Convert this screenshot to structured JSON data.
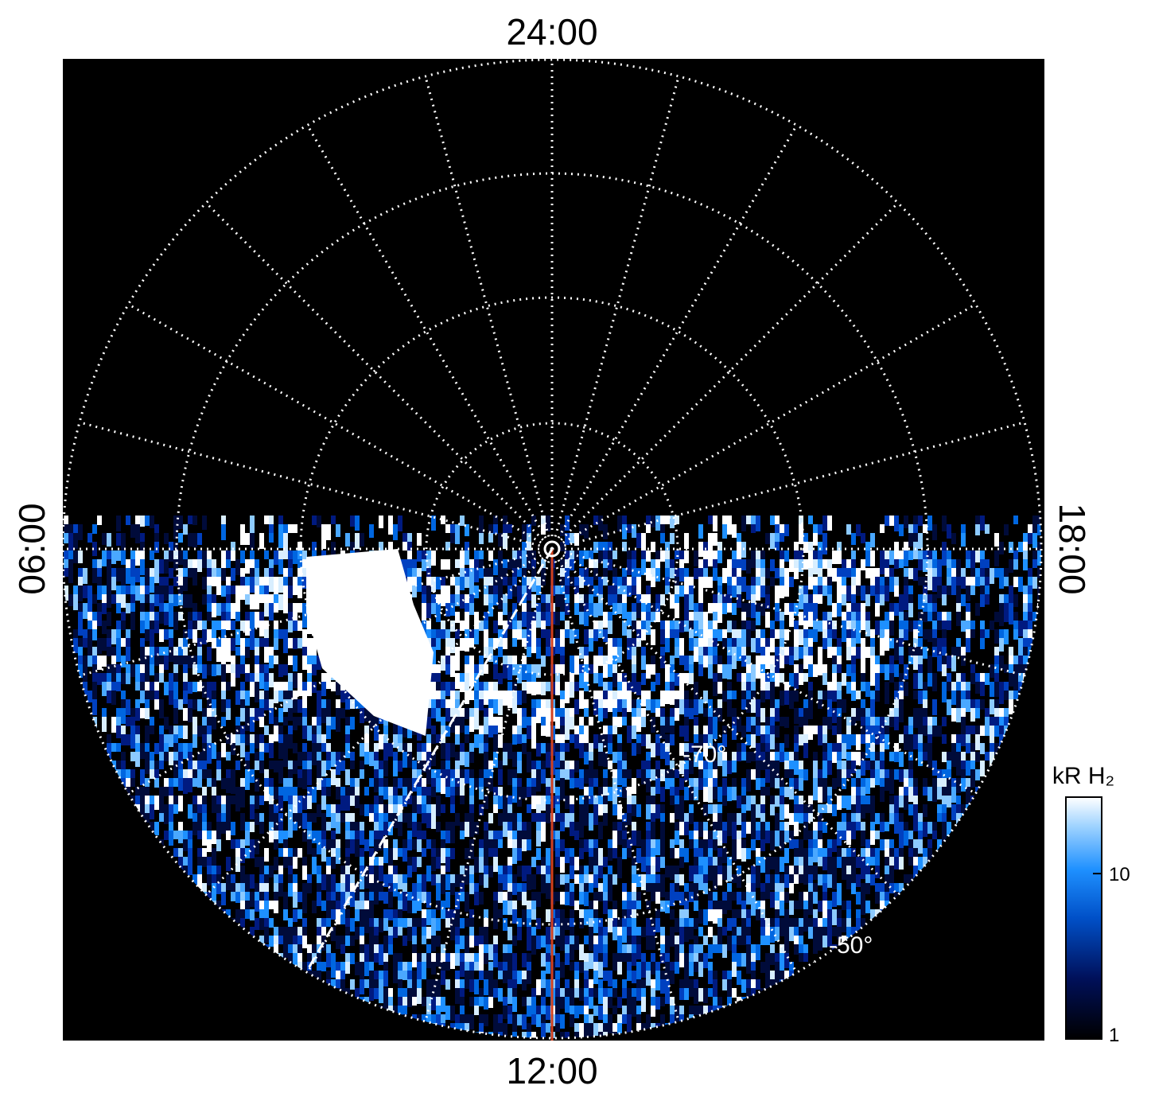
{
  "time_labels": {
    "top": "24:00",
    "bottom": "12:00",
    "left": "06:00",
    "right": "18:00"
  },
  "latitude_labels": [
    "-70°",
    "-50°"
  ],
  "colorbar": {
    "title": "kR H₂",
    "scale": "log",
    "lim": [
      1,
      29
    ],
    "ticks": [
      1,
      10
    ]
  }
}
